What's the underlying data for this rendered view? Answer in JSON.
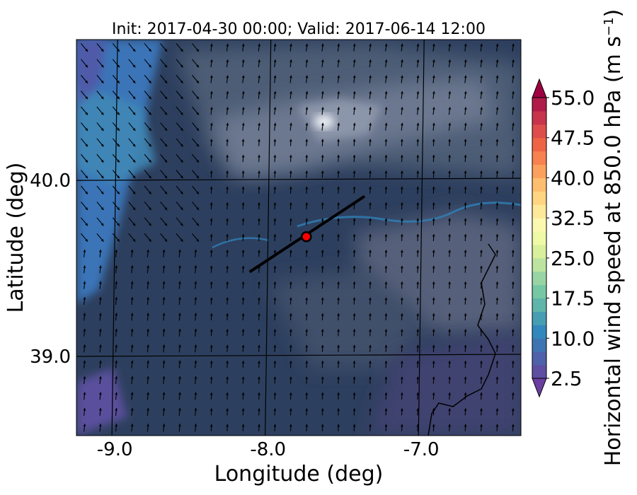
{
  "chart_data": {
    "type": "heatmap",
    "title": "Init: 2017-04-30 00:00; Valid: 2017-06-14 12:00",
    "xlabel": "Longitude (deg)",
    "ylabel": "Latitude (deg)",
    "xlim": [
      -9.25,
      -6.35
    ],
    "ylim": [
      38.55,
      40.8
    ],
    "x_ticks": [
      -9.0,
      -8.0,
      -7.0
    ],
    "x_tick_labels": [
      "-9.0",
      "-8.0",
      "-7.0"
    ],
    "y_ticks": [
      39.0,
      40.0
    ],
    "y_tick_labels": [
      "39.0",
      "40.0"
    ],
    "gridlines": true,
    "colorbar": {
      "label": "Horizontal wind speed at 850.0 hPa",
      "label_unit_base": "(m s",
      "label_unit_exp": "−1",
      "label_unit_close": ")",
      "min": 2.5,
      "max": 55.0,
      "step": 2.5,
      "ticks": [
        2.5,
        10.0,
        17.5,
        25.0,
        32.5,
        40.0,
        47.5,
        55.0
      ],
      "tick_labels": [
        "2.5",
        "10.0",
        "17.5",
        "25.0",
        "32.5",
        "40.0",
        "47.5",
        "55.0"
      ],
      "colors": [
        "#5e4fa2",
        "#4f61aa",
        "#3f74b2",
        "#3288bd",
        "#469eb3",
        "#5fb5a9",
        "#76c8a4",
        "#99d5a4",
        "#bce4a0",
        "#d9ef9b",
        "#eff9a6",
        "#fbf8b0",
        "#fee89a",
        "#fed581",
        "#fdbe6f",
        "#fca05d",
        "#f88150",
        "#ee6445",
        "#de4d4b",
        "#c7344c",
        "#b01b49",
        "#9e0142"
      ]
    },
    "wind_field": {
      "value_range": [
        2.5,
        10.0
      ],
      "dominant_direction": "northward (west of -8.4: toward south-east)"
    },
    "cross_section_line": {
      "start": [
        -8.12,
        39.48
      ],
      "end": [
        -7.37,
        39.91
      ],
      "color": "#000000"
    },
    "marker": {
      "lon": -7.75,
      "lat": 39.68,
      "fill": "#ff0000",
      "stroke": "#000000"
    }
  }
}
